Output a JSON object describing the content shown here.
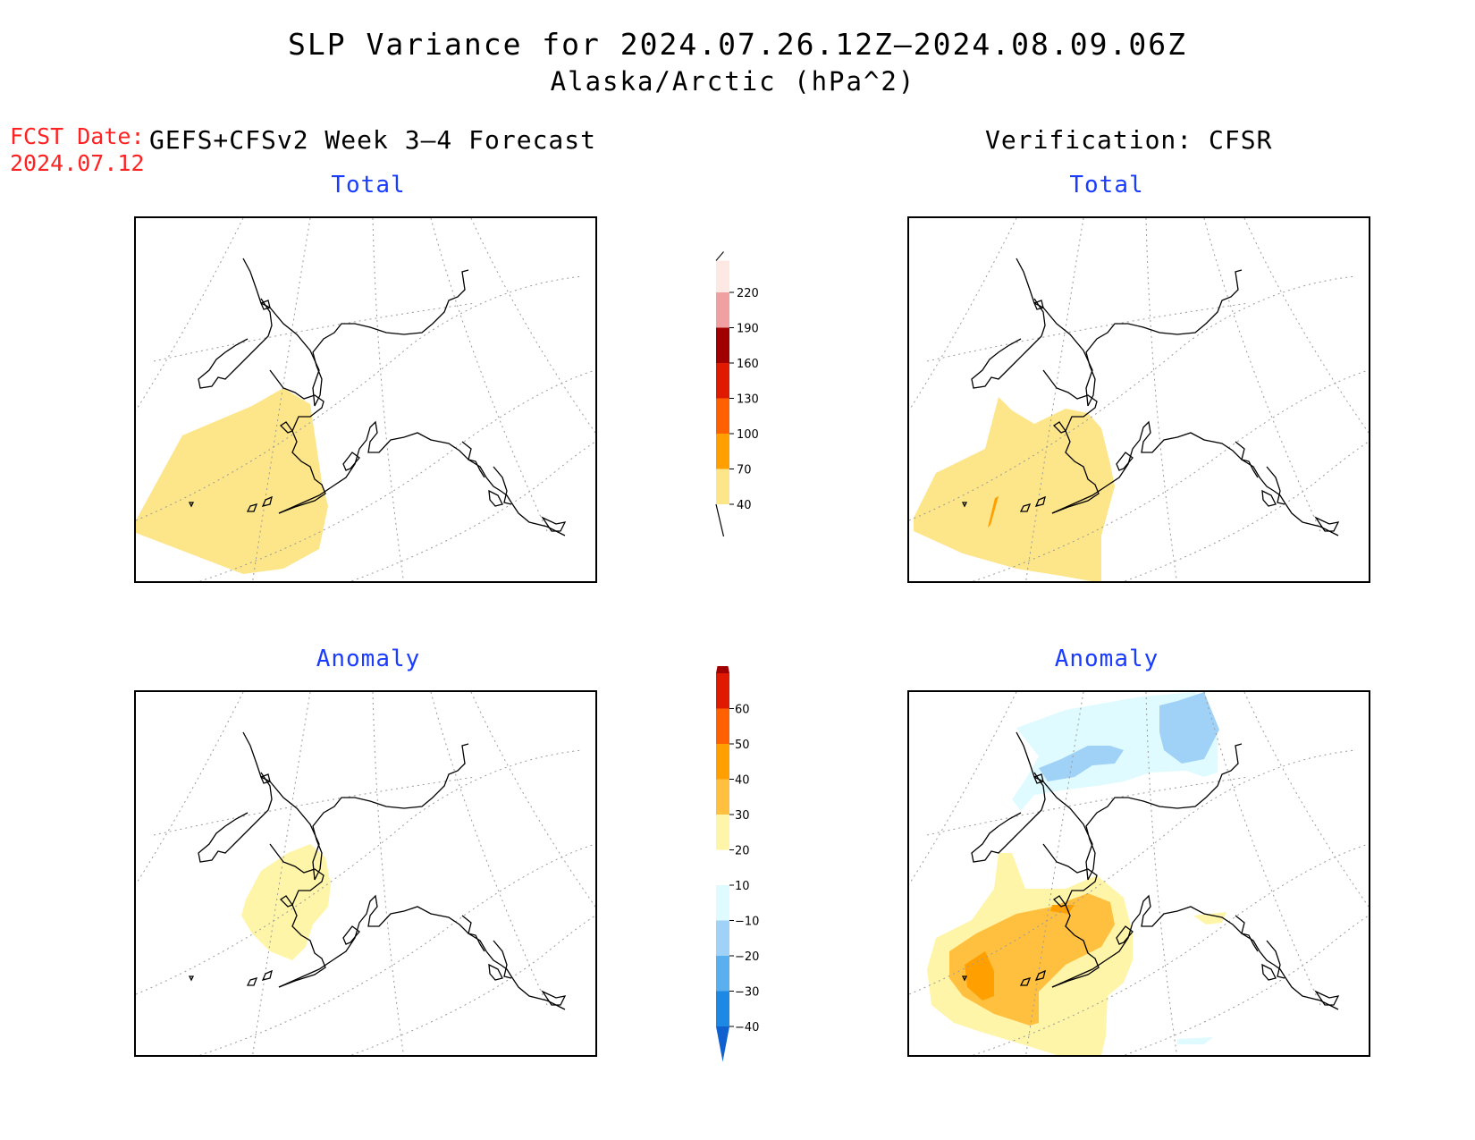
{
  "header": {
    "title": "SLP Variance for 2024.07.26.12Z–2024.08.09.06Z",
    "subtitle": "Alaska/Arctic (hPa^2)",
    "fcst_date_label": "FCST Date:",
    "fcst_date_value": "2024.07.12",
    "model_label": "GEFS+CFSv2 Week 3–4 Forecast",
    "verification_label": "Verification: CFSR"
  },
  "panels": {
    "forecast_total": {
      "title": "Total"
    },
    "verif_total": {
      "title": "Total"
    },
    "forecast_anomaly": {
      "title": "Anomaly"
    },
    "verif_anomaly": {
      "title": "Anomaly"
    }
  },
  "colorbars": {
    "total": {
      "levels": [
        40,
        70,
        100,
        130,
        160,
        190,
        220
      ],
      "colors": [
        "#fde58a",
        "#ffa000",
        "#ff6000",
        "#e01a00",
        "#a00000",
        "#f0a0a0",
        "#fde8e4"
      ]
    },
    "anomaly": {
      "levels": [
        -40,
        -30,
        -20,
        -10,
        10,
        20,
        30,
        40,
        50,
        60
      ],
      "colors": [
        "#1060d0",
        "#1e88e5",
        "#5ab0ee",
        "#a0d2f8",
        "#e0fbff",
        "#ffffff",
        "#fff5a8",
        "#ffc040",
        "#ffa000",
        "#ff6000",
        "#e01a00",
        "#a00000"
      ]
    }
  }
}
